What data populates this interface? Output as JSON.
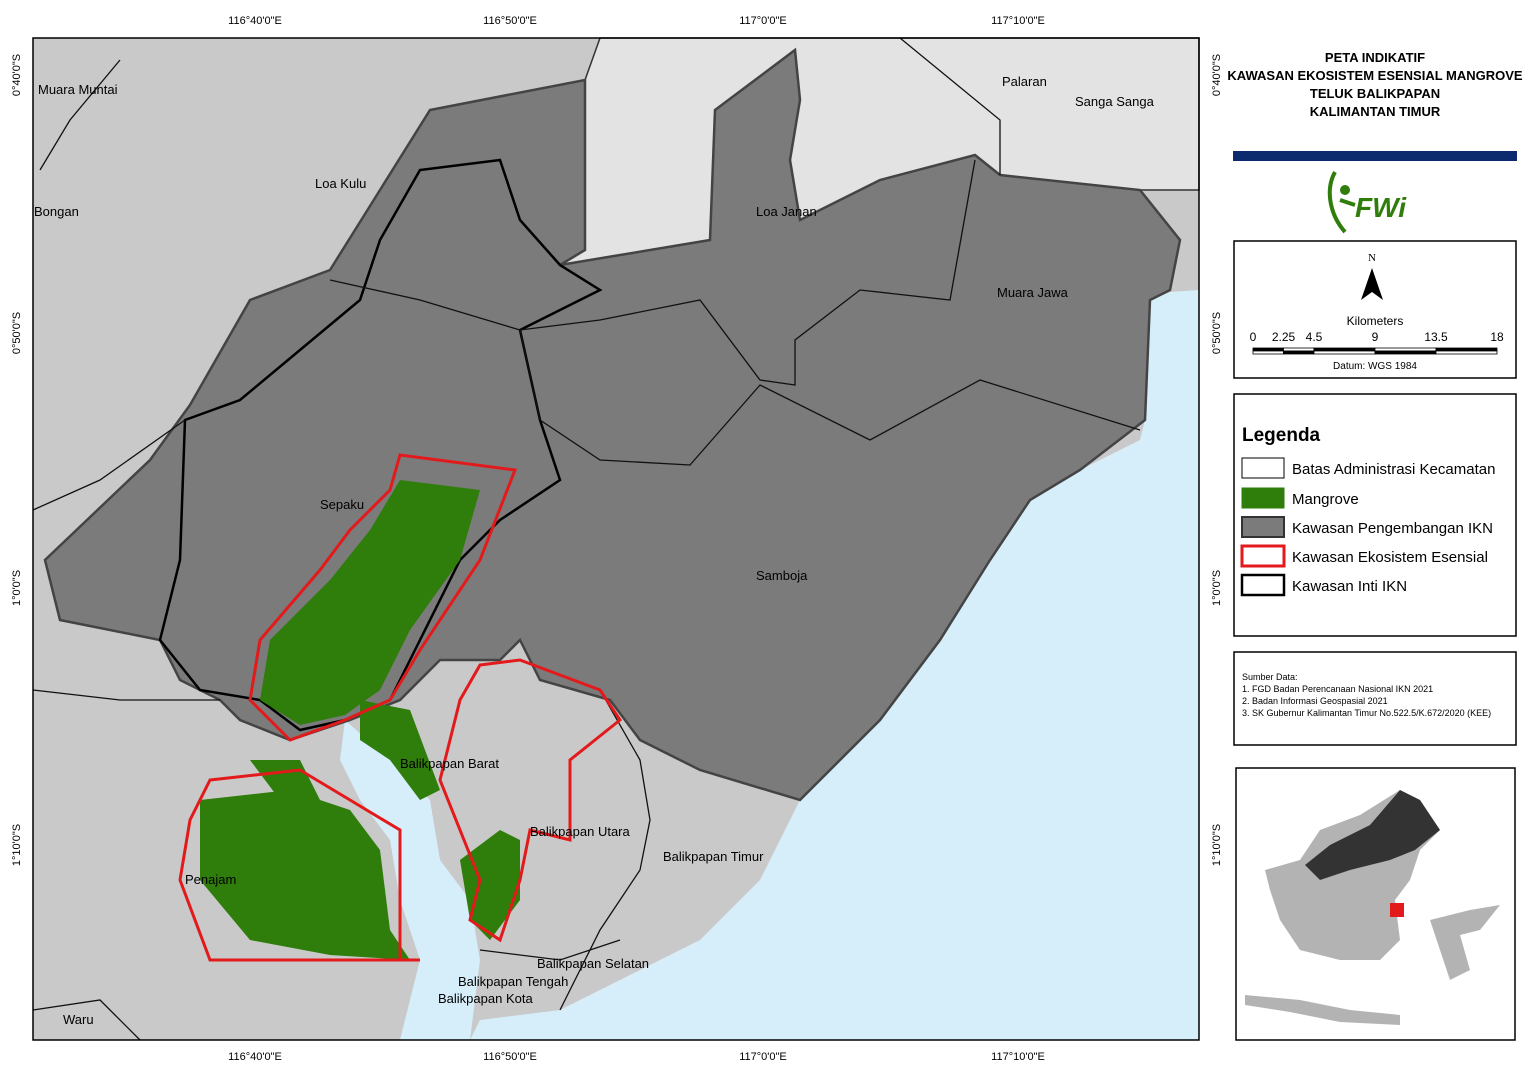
{
  "map": {
    "title_lines": [
      "PETA INDIKATIF",
      "KAWASAN EKOSISTEM ESENSIAL MANGROVE",
      "TELUK BALIKPAPAN",
      "KALIMANTAN TIMUR"
    ],
    "logo": "FWi",
    "graticule": {
      "longitudes": [
        "116°40'0\"E",
        "116°50'0\"E",
        "117°0'0\"E",
        "117°10'0\"E"
      ],
      "latitudes": [
        "0°40'0\"S",
        "0°50'0\"S",
        "1°0'0\"S",
        "1°10'0\"S"
      ]
    },
    "places": [
      "Muara Muntai",
      "Loa Kulu",
      "Bongan",
      "Loa Janan",
      "Palaran",
      "Sanga Sanga",
      "Muara Jawa",
      "Sepaku",
      "Samboja",
      "Balikpapan Barat",
      "Balikpapan Utara",
      "Balikpapan Timur",
      "Penajam",
      "Balikpapan Selatan",
      "Balikpapan Tengah",
      "Balikpapan Kota",
      "Waru"
    ],
    "north": "N",
    "scale": {
      "unit": "Kilometers",
      "ticks": [
        0,
        2.25,
        4.5,
        9,
        13.5,
        18
      ],
      "datum": "Datum:  WGS 1984"
    },
    "legend": {
      "title": "Legenda",
      "items": [
        "Batas Administrasi Kecamatan",
        "Mangrove",
        "Kawasan Pengembangan IKN",
        "Kawasan Ekosistem Esensial",
        "Kawasan Inti IKN"
      ]
    },
    "sources": {
      "title": "Sumber Data:",
      "items": [
        "1. FGD Badan Perencanaan Nasional IKN 2021",
        "2. Badan Informasi Geospasial 2021",
        "3. SK Gubernur Kalimantan Timur No.522.5/K.672/2020 (KEE)"
      ]
    }
  }
}
